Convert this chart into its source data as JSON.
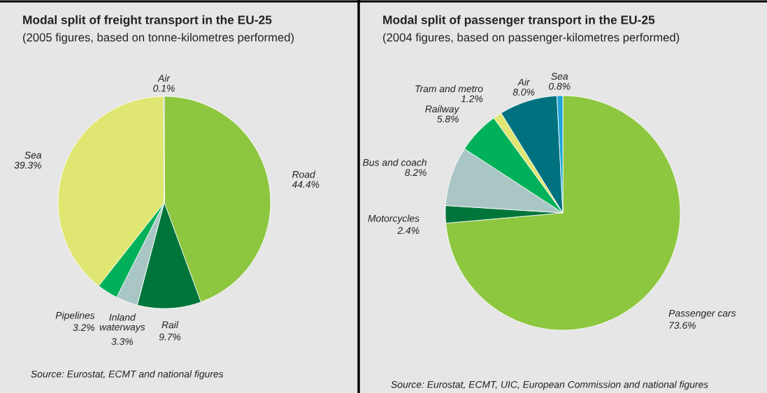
{
  "chart_data": [
    {
      "type": "pie",
      "title": "Modal split of freight transport in the EU-25",
      "subtitle": "(2005 figures, based on tonne-kilometres performed)",
      "categories": [
        "Road",
        "Rail",
        "Inland waterways",
        "Pipelines",
        "Sea",
        "Air"
      ],
      "values": [
        44.4,
        9.7,
        3.3,
        3.2,
        39.3,
        0.1
      ],
      "colors": [
        "#8dc63f",
        "#00753a",
        "#a9c6c4",
        "#00b15a",
        "#e0e672",
        "#1d6c86"
      ],
      "value_labels": [
        "44.4%",
        "9.7%",
        "3.3%",
        "3.2%",
        "39.3%",
        "0.1%"
      ],
      "annotations": [
        "Source: Eurostat, ECMT and national figures"
      ]
    },
    {
      "type": "pie",
      "title": "Modal split of passenger transport in the EU-25",
      "subtitle": "(2004 figures, based on passenger-kilometres performed)",
      "categories": [
        "Passenger cars",
        "Motorcycles",
        "Bus and coach",
        "Railway",
        "Tram and metro",
        "Air",
        "Sea"
      ],
      "values": [
        73.6,
        2.4,
        8.2,
        5.8,
        1.2,
        8.0,
        0.8
      ],
      "colors": [
        "#8dc63f",
        "#00753a",
        "#a9c6c4",
        "#00b15a",
        "#e0e672",
        "#00717f",
        "#1ca3d9"
      ],
      "value_labels": [
        "73.6%",
        "2.4%",
        "8.2%",
        "5.8%",
        "1.2%",
        "8.0%",
        "0.8%"
      ],
      "annotations": [
        "Source: Eurostat, ECMT, UIC, European Commission and national figures"
      ]
    }
  ]
}
